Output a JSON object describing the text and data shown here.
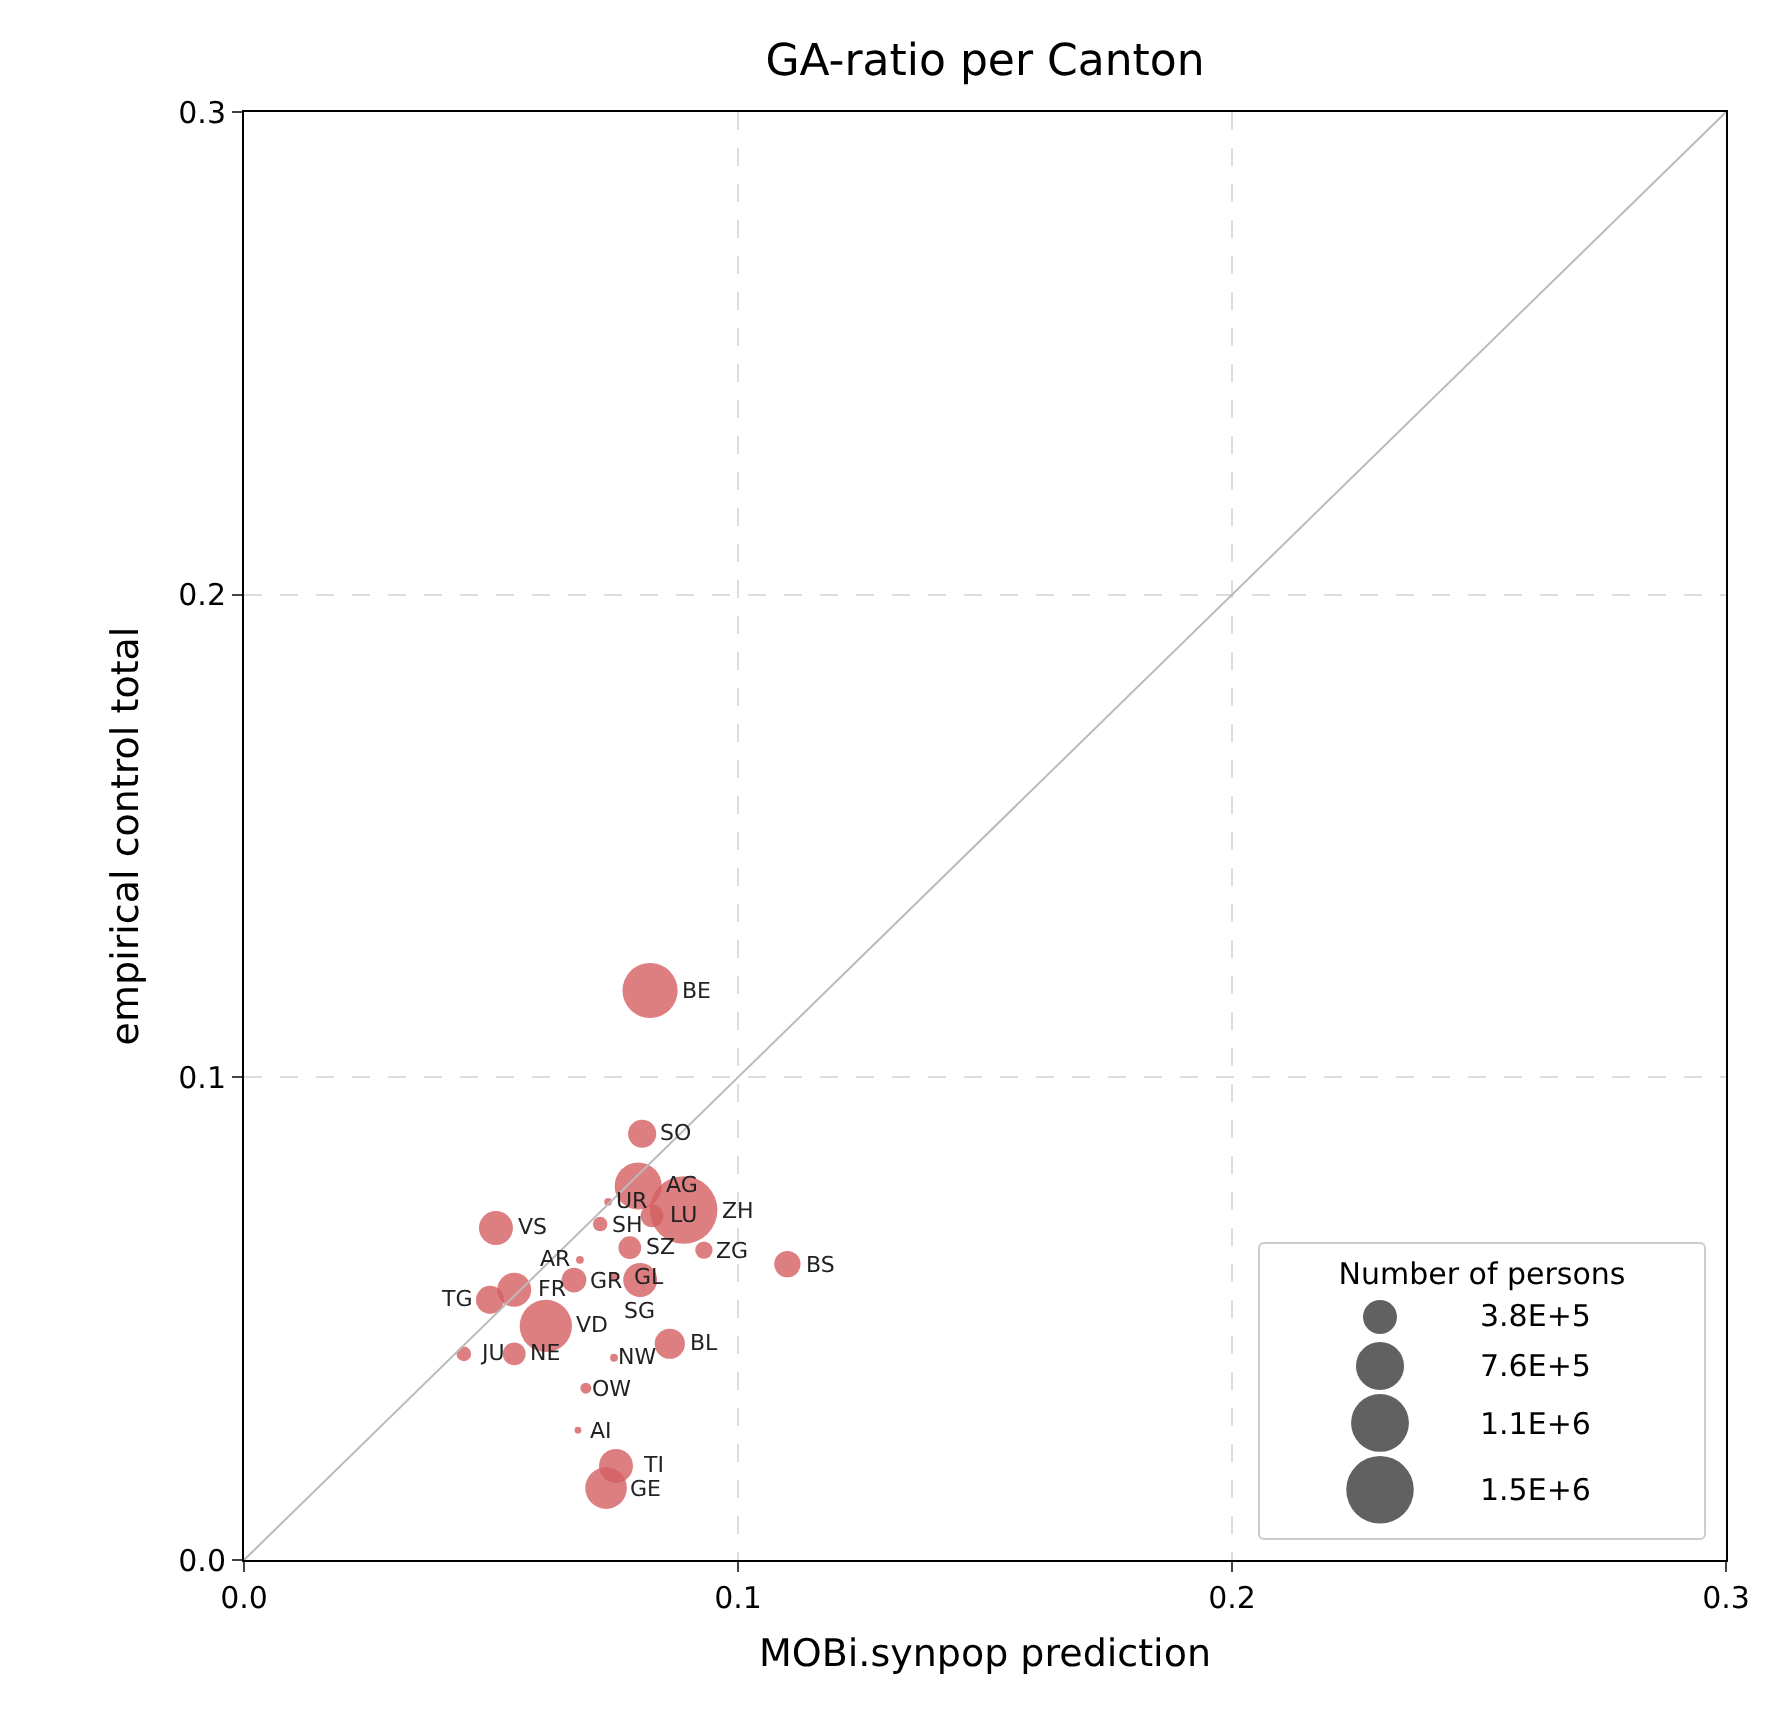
{
  "chart_data": {
    "type": "bubble",
    "title": "GA-ratio per Canton",
    "xlabel": "MOBi.synpop prediction",
    "ylabel": "empirical control total",
    "legend_title": "Number of persons",
    "xlim": [
      0,
      0.3
    ],
    "ylim": [
      0,
      0.3
    ],
    "xticks": [
      {
        "value": 0,
        "label": "0.0"
      },
      0.1,
      0.2,
      0.3
    ],
    "yticks": [
      {
        "value": 0,
        "label": "0.0"
      },
      0.1,
      0.2,
      0.3
    ],
    "grid": true,
    "series": [
      {
        "color": "#d45f62",
        "marker": "circle",
        "x": [
          0.0822,
          0.0806,
          0.0798,
          0.089,
          0.0826,
          0.0737,
          0.051,
          0.0781,
          0.11,
          0.0668,
          0.0749,
          0.0802,
          0.0547,
          0.0498,
          0.0611,
          0.0862,
          0.0547,
          0.0445,
          0.0749,
          0.0692,
          0.0676,
          0.0753,
          0.0733,
          0.068,
          0.0931,
          0.0721
        ],
        "values": [
          0.118,
          0.0883,
          0.0775,
          0.0725,
          0.0713,
          0.0742,
          0.0688,
          0.0647,
          0.0613,
          0.058,
          0.0588,
          0.058,
          0.056,
          0.0539,
          0.0485,
          0.0448,
          0.0427,
          0.0427,
          0.0419,
          0.0356,
          0.0269,
          0.0195,
          0.0149,
          0.0622,
          0.0642,
          0.0696
        ],
        "sizes": [
          1000000,
          260000,
          730000,
          1500000,
          170000,
          20000,
          380000,
          170000,
          230000,
          200000,
          20000,
          380000,
          380000,
          260000,
          900000,
          300000,
          170000,
          70000,
          20000,
          40000,
          15000,
          380000,
          570000,
          20000,
          100000,
          70000
        ],
        "value_labels": [
          "BE",
          "SO",
          "AG",
          "ZH",
          "LU",
          "UR",
          "VS",
          "SZ",
          "BS",
          "GR",
          "GL",
          "SG",
          "FR",
          "TG",
          "VD",
          "BL",
          "NE",
          "JU",
          "NW",
          "OW",
          "AI",
          "TI",
          "GE",
          "AR",
          "ZG",
          "SH"
        ]
      },
      {
        "type": "line",
        "color": "#bbbbbb",
        "x": [
          0,
          0.3
        ],
        "values": [
          0,
          0.3
        ]
      }
    ],
    "size_legend": [
      {
        "value": 380000,
        "label": "3.8E+5"
      },
      {
        "value": 760000,
        "label": "7.6E+5"
      },
      {
        "value": 1100000,
        "label": "1.1E+6"
      },
      {
        "value": 1500000,
        "label": "1.5E+6"
      }
    ]
  }
}
